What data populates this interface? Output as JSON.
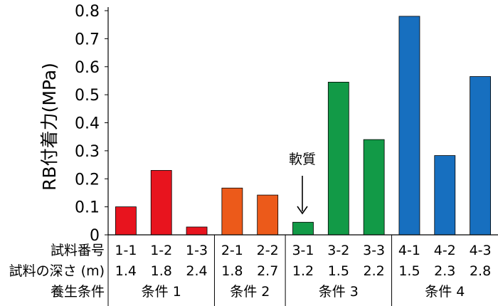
{
  "chart_data": {
    "type": "bar",
    "ylabel": "RB付着力(MPa)",
    "ylim": [
      0,
      0.8
    ],
    "yticks": [
      "0",
      "0.1",
      "0.2",
      "0.3",
      "0.4",
      "0.5",
      "0.6",
      "0.7",
      "0.8"
    ],
    "grid": false,
    "annotation": "軟質",
    "bars": [
      {
        "sample": "1-1",
        "depth": "1.4",
        "value": 0.1,
        "color": "#e8141e"
      },
      {
        "sample": "1-2",
        "depth": "1.8",
        "value": 0.23,
        "color": "#e8141e"
      },
      {
        "sample": "1-3",
        "depth": "2.4",
        "value": 0.028,
        "color": "#e8141e"
      },
      {
        "sample": "2-1",
        "depth": "1.8",
        "value": 0.167,
        "color": "#ec5a1a"
      },
      {
        "sample": "2-2",
        "depth": "2.7",
        "value": 0.142,
        "color": "#ec5a1a"
      },
      {
        "sample": "3-1",
        "depth": "1.2",
        "value": 0.045,
        "color": "#129a47"
      },
      {
        "sample": "3-2",
        "depth": "1.5",
        "value": 0.545,
        "color": "#129a47"
      },
      {
        "sample": "3-3",
        "depth": "2.2",
        "value": 0.34,
        "color": "#129a47"
      },
      {
        "sample": "4-1",
        "depth": "1.5",
        "value": 0.78,
        "color": "#176fbf"
      },
      {
        "sample": "4-2",
        "depth": "2.3",
        "value": 0.283,
        "color": "#176fbf"
      },
      {
        "sample": "4-3",
        "depth": "2.8",
        "value": 0.565,
        "color": "#176fbf"
      }
    ],
    "row_labels": [
      "試料番号",
      "試料の深さ (m)",
      "養生条件"
    ],
    "groups": [
      {
        "label": "条件 1",
        "count": 3
      },
      {
        "label": "条件 2",
        "count": 2
      },
      {
        "label": "条件 3",
        "count": 3
      },
      {
        "label": "条件 4",
        "count": 3
      }
    ]
  }
}
